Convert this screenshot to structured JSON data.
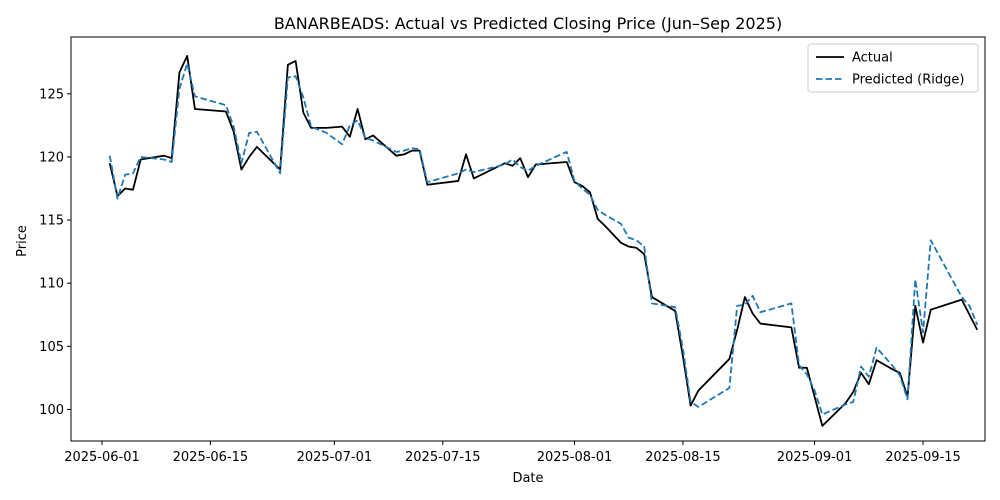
{
  "chart_data": {
    "type": "line",
    "title": "BANARBEADS: Actual vs Predicted Closing Price (Jun–Sep 2025)",
    "xlabel": "Date",
    "ylabel": "Price",
    "xlim": [
      "2025-05-28",
      "2025-09-23"
    ],
    "ylim": [
      97.5,
      129.5
    ],
    "x_ticks": [
      "2025-06-01",
      "2025-06-15",
      "2025-07-01",
      "2025-07-15",
      "2025-08-01",
      "2025-08-15",
      "2025-09-01",
      "2025-09-15"
    ],
    "y_ticks": [
      100,
      105,
      110,
      115,
      120,
      125
    ],
    "grid": false,
    "legend_position": "upper-right",
    "colors": {
      "actual": "#000000",
      "predicted": "#1f77b4"
    },
    "series": [
      {
        "name": "Actual",
        "style": "solid",
        "points": [
          [
            "2025-06-02",
            119.5
          ],
          [
            "2025-06-03",
            116.9
          ],
          [
            "2025-06-04",
            117.5
          ],
          [
            "2025-06-05",
            117.4
          ],
          [
            "2025-06-06",
            119.8
          ],
          [
            "2025-06-09",
            120.1
          ],
          [
            "2025-06-10",
            119.9
          ],
          [
            "2025-06-11",
            126.7
          ],
          [
            "2025-06-12",
            128.0
          ],
          [
            "2025-06-13",
            123.8
          ],
          [
            "2025-06-17",
            123.6
          ],
          [
            "2025-06-18",
            122.0
          ],
          [
            "2025-06-19",
            119.0
          ],
          [
            "2025-06-20",
            120.0
          ],
          [
            "2025-06-21",
            120.8
          ],
          [
            "2025-06-24",
            119.0
          ],
          [
            "2025-06-25",
            127.3
          ],
          [
            "2025-06-26",
            127.6
          ],
          [
            "2025-06-27",
            123.5
          ],
          [
            "2025-06-28",
            122.3
          ],
          [
            "2025-06-30",
            122.3
          ],
          [
            "2025-07-02",
            122.4
          ],
          [
            "2025-07-03",
            121.6
          ],
          [
            "2025-07-04",
            123.8
          ],
          [
            "2025-07-05",
            121.4
          ],
          [
            "2025-07-06",
            121.7
          ],
          [
            "2025-07-09",
            120.1
          ],
          [
            "2025-07-10",
            120.2
          ],
          [
            "2025-07-11",
            120.5
          ],
          [
            "2025-07-12",
            120.5
          ],
          [
            "2025-07-13",
            117.8
          ],
          [
            "2025-07-17",
            118.1
          ],
          [
            "2025-07-18",
            120.2
          ],
          [
            "2025-07-19",
            118.3
          ],
          [
            "2025-07-23",
            119.5
          ],
          [
            "2025-07-24",
            119.3
          ],
          [
            "2025-07-25",
            119.9
          ],
          [
            "2025-07-26",
            118.4
          ],
          [
            "2025-07-27",
            119.4
          ],
          [
            "2025-07-31",
            119.6
          ],
          [
            "2025-08-01",
            118.0
          ],
          [
            "2025-08-02",
            117.7
          ],
          [
            "2025-08-03",
            117.2
          ],
          [
            "2025-08-04",
            115.1
          ],
          [
            "2025-08-05",
            114.5
          ],
          [
            "2025-08-07",
            113.2
          ],
          [
            "2025-08-08",
            112.9
          ],
          [
            "2025-08-09",
            112.8
          ],
          [
            "2025-08-10",
            112.3
          ],
          [
            "2025-08-11",
            108.9
          ],
          [
            "2025-08-14",
            107.8
          ],
          [
            "2025-08-15",
            104.2
          ],
          [
            "2025-08-16",
            100.3
          ],
          [
            "2025-08-17",
            101.5
          ],
          [
            "2025-08-21",
            104.0
          ],
          [
            "2025-08-22",
            106.3
          ],
          [
            "2025-08-23",
            108.9
          ],
          [
            "2025-08-24",
            107.6
          ],
          [
            "2025-08-25",
            106.8
          ],
          [
            "2025-08-29",
            106.5
          ],
          [
            "2025-08-30",
            103.3
          ],
          [
            "2025-08-31",
            103.3
          ],
          [
            "2025-09-01",
            101.0
          ],
          [
            "2025-09-02",
            98.7
          ],
          [
            "2025-09-05",
            100.5
          ],
          [
            "2025-09-06",
            101.4
          ],
          [
            "2025-09-07",
            102.9
          ],
          [
            "2025-09-08",
            102.0
          ],
          [
            "2025-09-09",
            103.9
          ],
          [
            "2025-09-11",
            103.2
          ],
          [
            "2025-09-12",
            102.9
          ],
          [
            "2025-09-13",
            101.0
          ],
          [
            "2025-09-14",
            108.2
          ],
          [
            "2025-09-15",
            105.3
          ],
          [
            "2025-09-16",
            107.9
          ],
          [
            "2025-09-20",
            108.7
          ],
          [
            "2025-09-22",
            106.3
          ]
        ]
      },
      {
        "name": "Predicted (Ridge)",
        "style": "dashed",
        "points": [
          [
            "2025-06-02",
            120.1
          ],
          [
            "2025-06-03",
            116.7
          ],
          [
            "2025-06-04",
            118.6
          ],
          [
            "2025-06-05",
            118.7
          ],
          [
            "2025-06-06",
            120.0
          ],
          [
            "2025-06-09",
            119.8
          ],
          [
            "2025-06-10",
            119.6
          ],
          [
            "2025-06-11",
            125.4
          ],
          [
            "2025-06-12",
            127.4
          ],
          [
            "2025-06-13",
            124.8
          ],
          [
            "2025-06-17",
            124.1
          ],
          [
            "2025-06-18",
            122.4
          ],
          [
            "2025-06-19",
            119.5
          ],
          [
            "2025-06-20",
            121.9
          ],
          [
            "2025-06-21",
            122.0
          ],
          [
            "2025-06-24",
            118.7
          ],
          [
            "2025-06-25",
            126.3
          ],
          [
            "2025-06-26",
            126.4
          ],
          [
            "2025-06-27",
            124.7
          ],
          [
            "2025-06-28",
            122.4
          ],
          [
            "2025-06-30",
            121.9
          ],
          [
            "2025-07-02",
            121.0
          ],
          [
            "2025-07-03",
            122.5
          ],
          [
            "2025-07-04",
            122.9
          ],
          [
            "2025-07-05",
            121.5
          ],
          [
            "2025-07-06",
            121.3
          ],
          [
            "2025-07-09",
            120.4
          ],
          [
            "2025-07-10",
            120.5
          ],
          [
            "2025-07-11",
            120.7
          ],
          [
            "2025-07-12",
            120.6
          ],
          [
            "2025-07-13",
            118.0
          ],
          [
            "2025-07-17",
            118.7
          ],
          [
            "2025-07-18",
            119.0
          ],
          [
            "2025-07-19",
            118.8
          ],
          [
            "2025-07-23",
            119.4
          ],
          [
            "2025-07-24",
            119.8
          ],
          [
            "2025-07-25",
            119.2
          ],
          [
            "2025-07-26",
            118.9
          ],
          [
            "2025-07-27",
            119.3
          ],
          [
            "2025-07-31",
            120.4
          ],
          [
            "2025-08-01",
            118.1
          ],
          [
            "2025-08-02",
            117.5
          ],
          [
            "2025-08-03",
            117.0
          ],
          [
            "2025-08-04",
            115.8
          ],
          [
            "2025-08-05",
            115.4
          ],
          [
            "2025-08-07",
            114.7
          ],
          [
            "2025-08-08",
            113.6
          ],
          [
            "2025-08-09",
            113.4
          ],
          [
            "2025-08-10",
            112.9
          ],
          [
            "2025-08-11",
            108.4
          ],
          [
            "2025-08-14",
            108.1
          ],
          [
            "2025-08-15",
            104.8
          ],
          [
            "2025-08-16",
            100.6
          ],
          [
            "2025-08-17",
            100.2
          ],
          [
            "2025-08-21",
            101.7
          ],
          [
            "2025-08-22",
            108.2
          ],
          [
            "2025-08-23",
            108.3
          ],
          [
            "2025-08-24",
            109.0
          ],
          [
            "2025-08-25",
            107.7
          ],
          [
            "2025-08-29",
            108.4
          ],
          [
            "2025-08-30",
            103.5
          ],
          [
            "2025-08-31",
            102.8
          ],
          [
            "2025-09-01",
            101.5
          ],
          [
            "2025-09-02",
            99.6
          ],
          [
            "2025-09-05",
            100.4
          ],
          [
            "2025-09-06",
            100.6
          ],
          [
            "2025-09-07",
            103.4
          ],
          [
            "2025-09-08",
            102.6
          ],
          [
            "2025-09-09",
            104.9
          ],
          [
            "2025-09-11",
            103.5
          ],
          [
            "2025-09-12",
            102.7
          ],
          [
            "2025-09-13",
            100.8
          ],
          [
            "2025-09-14",
            110.3
          ],
          [
            "2025-09-15",
            106.1
          ],
          [
            "2025-09-16",
            113.4
          ],
          [
            "2025-09-20",
            108.9
          ],
          [
            "2025-09-21",
            108.2
          ],
          [
            "2025-09-22",
            106.7
          ]
        ]
      }
    ]
  }
}
